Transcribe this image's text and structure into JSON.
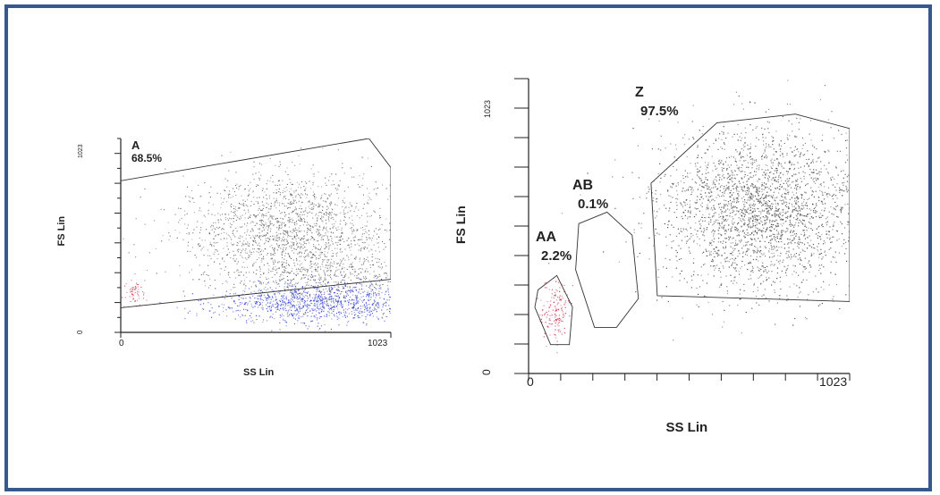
{
  "frame": {
    "border_color": "#36588d"
  },
  "chart_data": [
    {
      "type": "scatter",
      "title": "",
      "xlabel": "SS Lin",
      "ylabel": "FS Lin",
      "xlim": [
        0,
        1023
      ],
      "ylim": [
        0,
        1023
      ],
      "x_tick_labels": [
        "0",
        "1023"
      ],
      "y_tick_labels": [
        "0",
        "1023"
      ],
      "colors": {
        "gray": "#555555",
        "blue": "#2030d8",
        "red": "#d03040"
      },
      "gates": [
        {
          "name": "A",
          "percent": "68.5%",
          "polygon": [
            [
              0,
              800
            ],
            [
              940,
              1023
            ],
            [
              1023,
              870
            ],
            [
              1023,
              280
            ],
            [
              0,
              130
            ]
          ]
        }
      ],
      "populations": [
        {
          "color": "gray",
          "count": 1600,
          "center": [
            640,
            560
          ],
          "spread": [
            190,
            150
          ]
        },
        {
          "color": "gray",
          "count": 700,
          "center": [
            780,
            330
          ],
          "spread": [
            210,
            110
          ]
        },
        {
          "color": "blue",
          "count": 1100,
          "center": [
            740,
            160
          ],
          "spread": [
            200,
            55
          ]
        },
        {
          "color": "red",
          "count": 60,
          "center": [
            45,
            210
          ],
          "spread": [
            18,
            40
          ]
        }
      ]
    },
    {
      "type": "scatter",
      "title": "",
      "xlabel": "SS Lin",
      "ylabel": "FS Lin",
      "xlim": [
        0,
        1023
      ],
      "ylim": [
        0,
        1023
      ],
      "x_tick_labels": [
        "0",
        "1023"
      ],
      "y_tick_labels": [
        "0",
        "1023"
      ],
      "colors": {
        "gray": "#444444",
        "red": "#d03050"
      },
      "gates": [
        {
          "name": "Z",
          "percent": "97.5%",
          "polygon": [
            [
              390,
              660
            ],
            [
              600,
              870
            ],
            [
              850,
              900
            ],
            [
              1023,
              850
            ],
            [
              1023,
              250
            ],
            [
              410,
              270
            ]
          ]
        },
        {
          "name": "AB",
          "percent": "0.1%",
          "polygon": [
            [
              160,
              520
            ],
            [
              250,
              560
            ],
            [
              330,
              480
            ],
            [
              350,
              260
            ],
            [
              280,
              160
            ],
            [
              210,
              160
            ],
            [
              150,
              360
            ]
          ]
        },
        {
          "name": "AA",
          "percent": "2.2%",
          "polygon": [
            [
              30,
              290
            ],
            [
              90,
              340
            ],
            [
              140,
              230
            ],
            [
              130,
              100
            ],
            [
              70,
              100
            ],
            [
              20,
              230
            ]
          ]
        }
      ],
      "populations": [
        {
          "color": "gray",
          "count": 2600,
          "center": [
            740,
            570
          ],
          "spread": [
            160,
            140
          ]
        },
        {
          "color": "red",
          "count": 150,
          "center": [
            85,
            215
          ],
          "spread": [
            25,
            55
          ]
        }
      ]
    }
  ]
}
